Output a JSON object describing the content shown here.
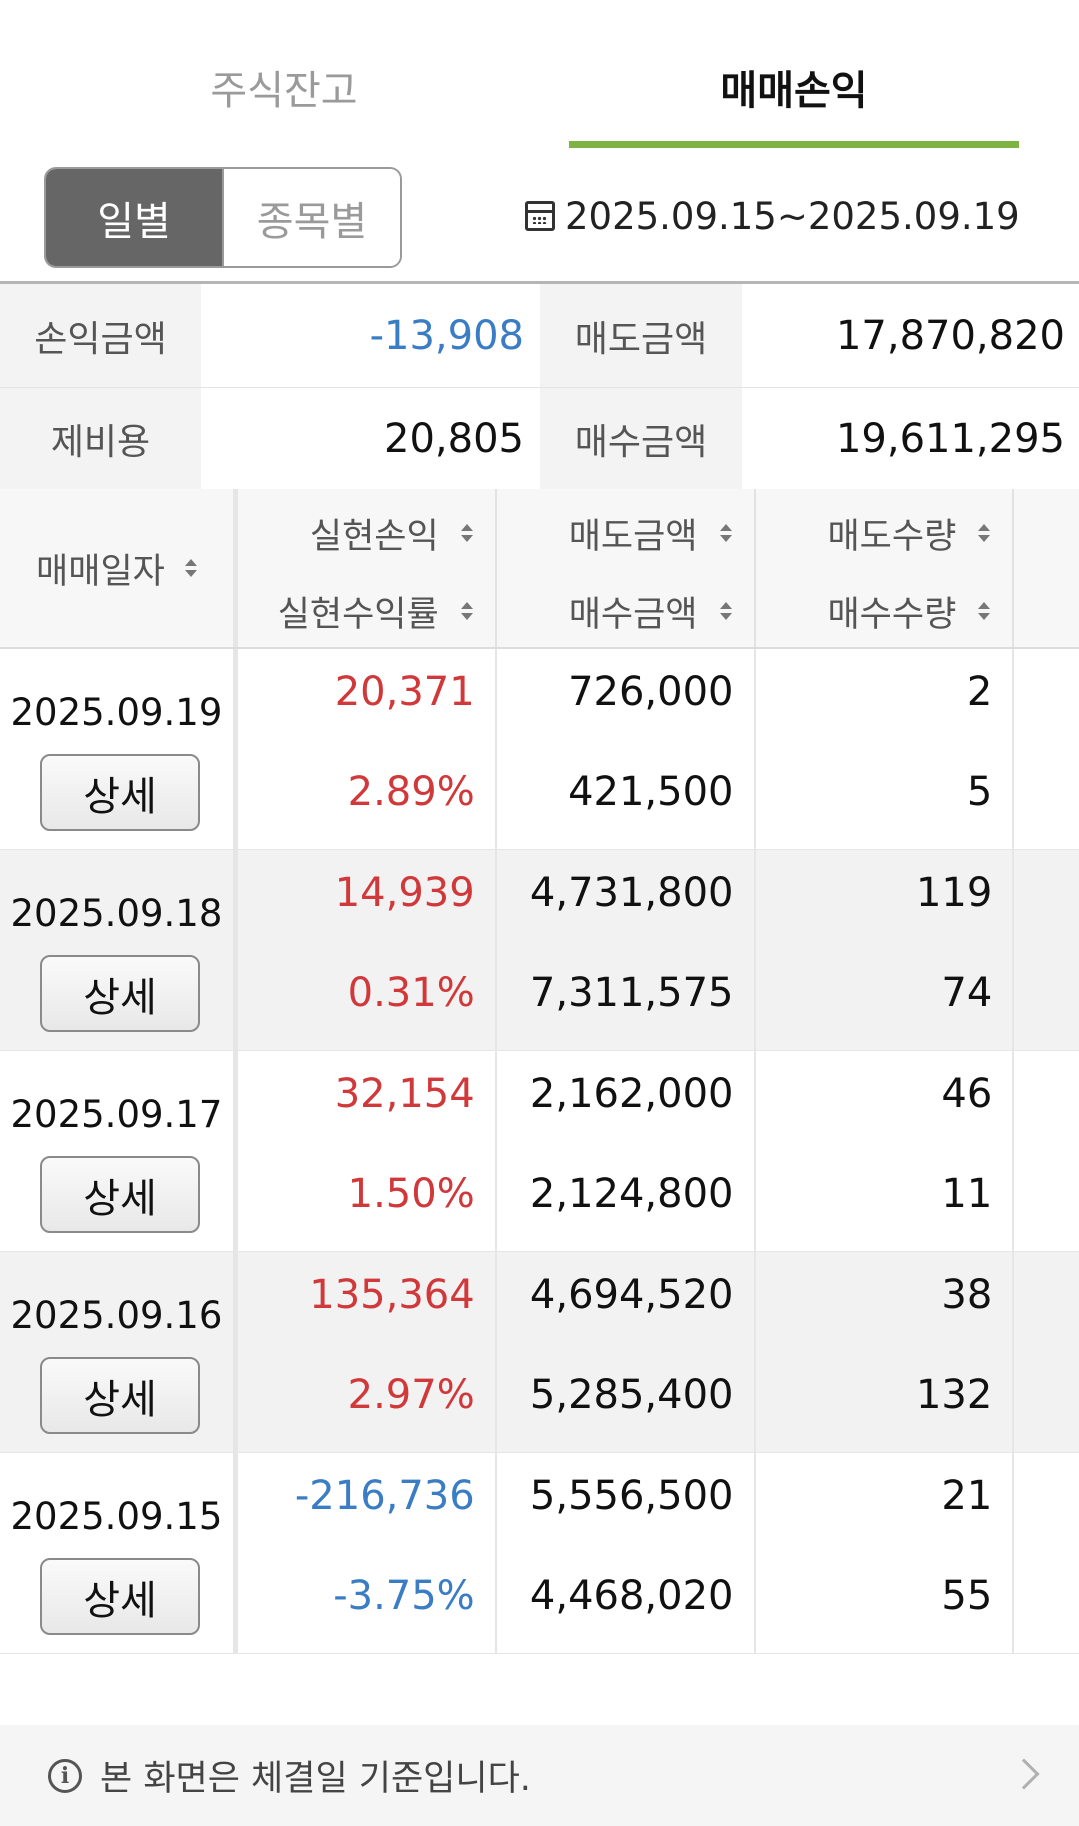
{
  "tabs": [
    {
      "label": "주식잔고",
      "active": false
    },
    {
      "label": "매매손익",
      "active": true
    }
  ],
  "accent_color": "#7cb342",
  "segment": {
    "daily": "일별",
    "by_stock": "종목별",
    "selected": "daily"
  },
  "date_range": "2025.09.15~2025.09.19",
  "summary": {
    "pl_label": "손익금액",
    "pl_value": "-13,908",
    "sell_label": "매도금액",
    "sell_value": "17,870,820",
    "fee_label": "제비용",
    "fee_value": "20,805",
    "buy_label": "매수금액",
    "buy_value": "19,611,295"
  },
  "table": {
    "headers": {
      "date": "매매일자",
      "realized_pl": "실현손익",
      "realized_rate": "실현수익률",
      "sell_amount": "매도금액",
      "buy_amount": "매수금액",
      "sell_qty": "매도수량",
      "buy_qty": "매수수량"
    },
    "detail_label": "상세",
    "rows": [
      {
        "date": "2025.09.19",
        "realized_pl": "20,371",
        "realized_rate": "2.89%",
        "sell_amount": "726,000",
        "buy_amount": "421,500",
        "sell_qty": "2",
        "buy_qty": "5",
        "sign": "positive"
      },
      {
        "date": "2025.09.18",
        "realized_pl": "14,939",
        "realized_rate": "0.31%",
        "sell_amount": "4,731,800",
        "buy_amount": "7,311,575",
        "sell_qty": "119",
        "buy_qty": "74",
        "sign": "positive"
      },
      {
        "date": "2025.09.17",
        "realized_pl": "32,154",
        "realized_rate": "1.50%",
        "sell_amount": "2,162,000",
        "buy_amount": "2,124,800",
        "sell_qty": "46",
        "buy_qty": "11",
        "sign": "positive"
      },
      {
        "date": "2025.09.16",
        "realized_pl": "135,364",
        "realized_rate": "2.97%",
        "sell_amount": "4,694,520",
        "buy_amount": "5,285,400",
        "sell_qty": "38",
        "buy_qty": "132",
        "sign": "positive"
      },
      {
        "date": "2025.09.15",
        "realized_pl": "-216,736",
        "realized_rate": "-3.75%",
        "sell_amount": "5,556,500",
        "buy_amount": "4,468,020",
        "sell_qty": "21",
        "buy_qty": "55",
        "sign": "negative"
      }
    ]
  },
  "colors": {
    "positive": "#d0383a",
    "negative": "#3a7dc4"
  },
  "notice": {
    "text": "본 화면은 체결일 기준입니다.",
    "icon": "info-icon",
    "chevron": "chevron-right-icon"
  }
}
